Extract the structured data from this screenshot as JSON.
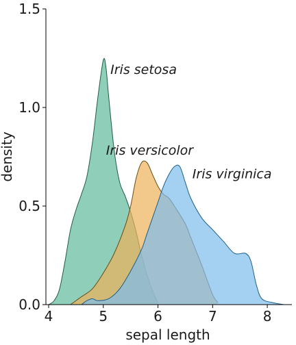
{
  "chart_data": {
    "type": "area",
    "xlabel": "sepal length",
    "ylabel": "density",
    "xlim": [
      3.95,
      8.45
    ],
    "ylim": [
      0,
      1.5
    ],
    "xticks": [
      4,
      5,
      6,
      7,
      8
    ],
    "xtick_labels": [
      "4",
      "5",
      "6",
      "7",
      "8"
    ],
    "yticks": [
      0,
      0.5,
      1.0,
      1.5
    ],
    "ytick_labels": [
      "0.0",
      "0.5",
      "1.0",
      "1.5"
    ],
    "grid": false,
    "legend": "direct labels",
    "series": [
      {
        "name": "Iris setosa",
        "fill": "#5FB99A",
        "stroke": "#1F5C40",
        "points": [
          [
            4.0,
            0.0
          ],
          [
            4.1,
            0.02
          ],
          [
            4.2,
            0.08
          ],
          [
            4.3,
            0.22
          ],
          [
            4.4,
            0.38
          ],
          [
            4.5,
            0.48
          ],
          [
            4.6,
            0.56
          ],
          [
            4.7,
            0.65
          ],
          [
            4.8,
            0.82
          ],
          [
            4.9,
            1.05
          ],
          [
            5.0,
            1.24
          ],
          [
            5.05,
            1.2
          ],
          [
            5.1,
            1.05
          ],
          [
            5.2,
            0.78
          ],
          [
            5.3,
            0.62
          ],
          [
            5.4,
            0.55
          ],
          [
            5.5,
            0.47
          ],
          [
            5.6,
            0.37
          ],
          [
            5.7,
            0.25
          ],
          [
            5.8,
            0.15
          ],
          [
            5.9,
            0.07
          ],
          [
            6.0,
            0.01
          ]
        ]
      },
      {
        "name": "Iris versicolor",
        "fill": "#EDB25A",
        "stroke": "#6B4A14",
        "points": [
          [
            4.4,
            0.0
          ],
          [
            4.5,
            0.02
          ],
          [
            4.6,
            0.04
          ],
          [
            4.8,
            0.08
          ],
          [
            5.0,
            0.16
          ],
          [
            5.2,
            0.26
          ],
          [
            5.4,
            0.4
          ],
          [
            5.5,
            0.5
          ],
          [
            5.6,
            0.64
          ],
          [
            5.7,
            0.72
          ],
          [
            5.8,
            0.72
          ],
          [
            5.9,
            0.66
          ],
          [
            6.0,
            0.6
          ],
          [
            6.1,
            0.56
          ],
          [
            6.2,
            0.54
          ],
          [
            6.3,
            0.5
          ],
          [
            6.5,
            0.41
          ],
          [
            6.6,
            0.34
          ],
          [
            6.8,
            0.2
          ],
          [
            7.0,
            0.05
          ],
          [
            7.1,
            0.01
          ]
        ]
      },
      {
        "name": "Iris virginica",
        "fill": "#7DBCEC",
        "stroke": "#1D5E8A",
        "points": [
          [
            4.6,
            0.0
          ],
          [
            4.7,
            0.02
          ],
          [
            4.8,
            0.03
          ],
          [
            4.9,
            0.02
          ],
          [
            5.1,
            0.03
          ],
          [
            5.3,
            0.08
          ],
          [
            5.5,
            0.17
          ],
          [
            5.7,
            0.28
          ],
          [
            5.8,
            0.36
          ],
          [
            6.0,
            0.52
          ],
          [
            6.1,
            0.6
          ],
          [
            6.2,
            0.66
          ],
          [
            6.3,
            0.7
          ],
          [
            6.4,
            0.7
          ],
          [
            6.5,
            0.62
          ],
          [
            6.6,
            0.54
          ],
          [
            6.8,
            0.44
          ],
          [
            7.0,
            0.38
          ],
          [
            7.2,
            0.32
          ],
          [
            7.4,
            0.26
          ],
          [
            7.6,
            0.26
          ],
          [
            7.7,
            0.22
          ],
          [
            7.8,
            0.1
          ],
          [
            7.9,
            0.03
          ],
          [
            8.1,
            0.01
          ],
          [
            8.3,
            0.0
          ]
        ]
      }
    ],
    "annotations": [
      {
        "text": "Iris setosa",
        "x": 5.13,
        "y": 1.17,
        "series": 0
      },
      {
        "text": "Iris versicolor",
        "x": 5.05,
        "y": 0.76,
        "series": 1
      },
      {
        "text": "Iris virginica",
        "x": 6.63,
        "y": 0.64,
        "series": 2
      }
    ]
  }
}
